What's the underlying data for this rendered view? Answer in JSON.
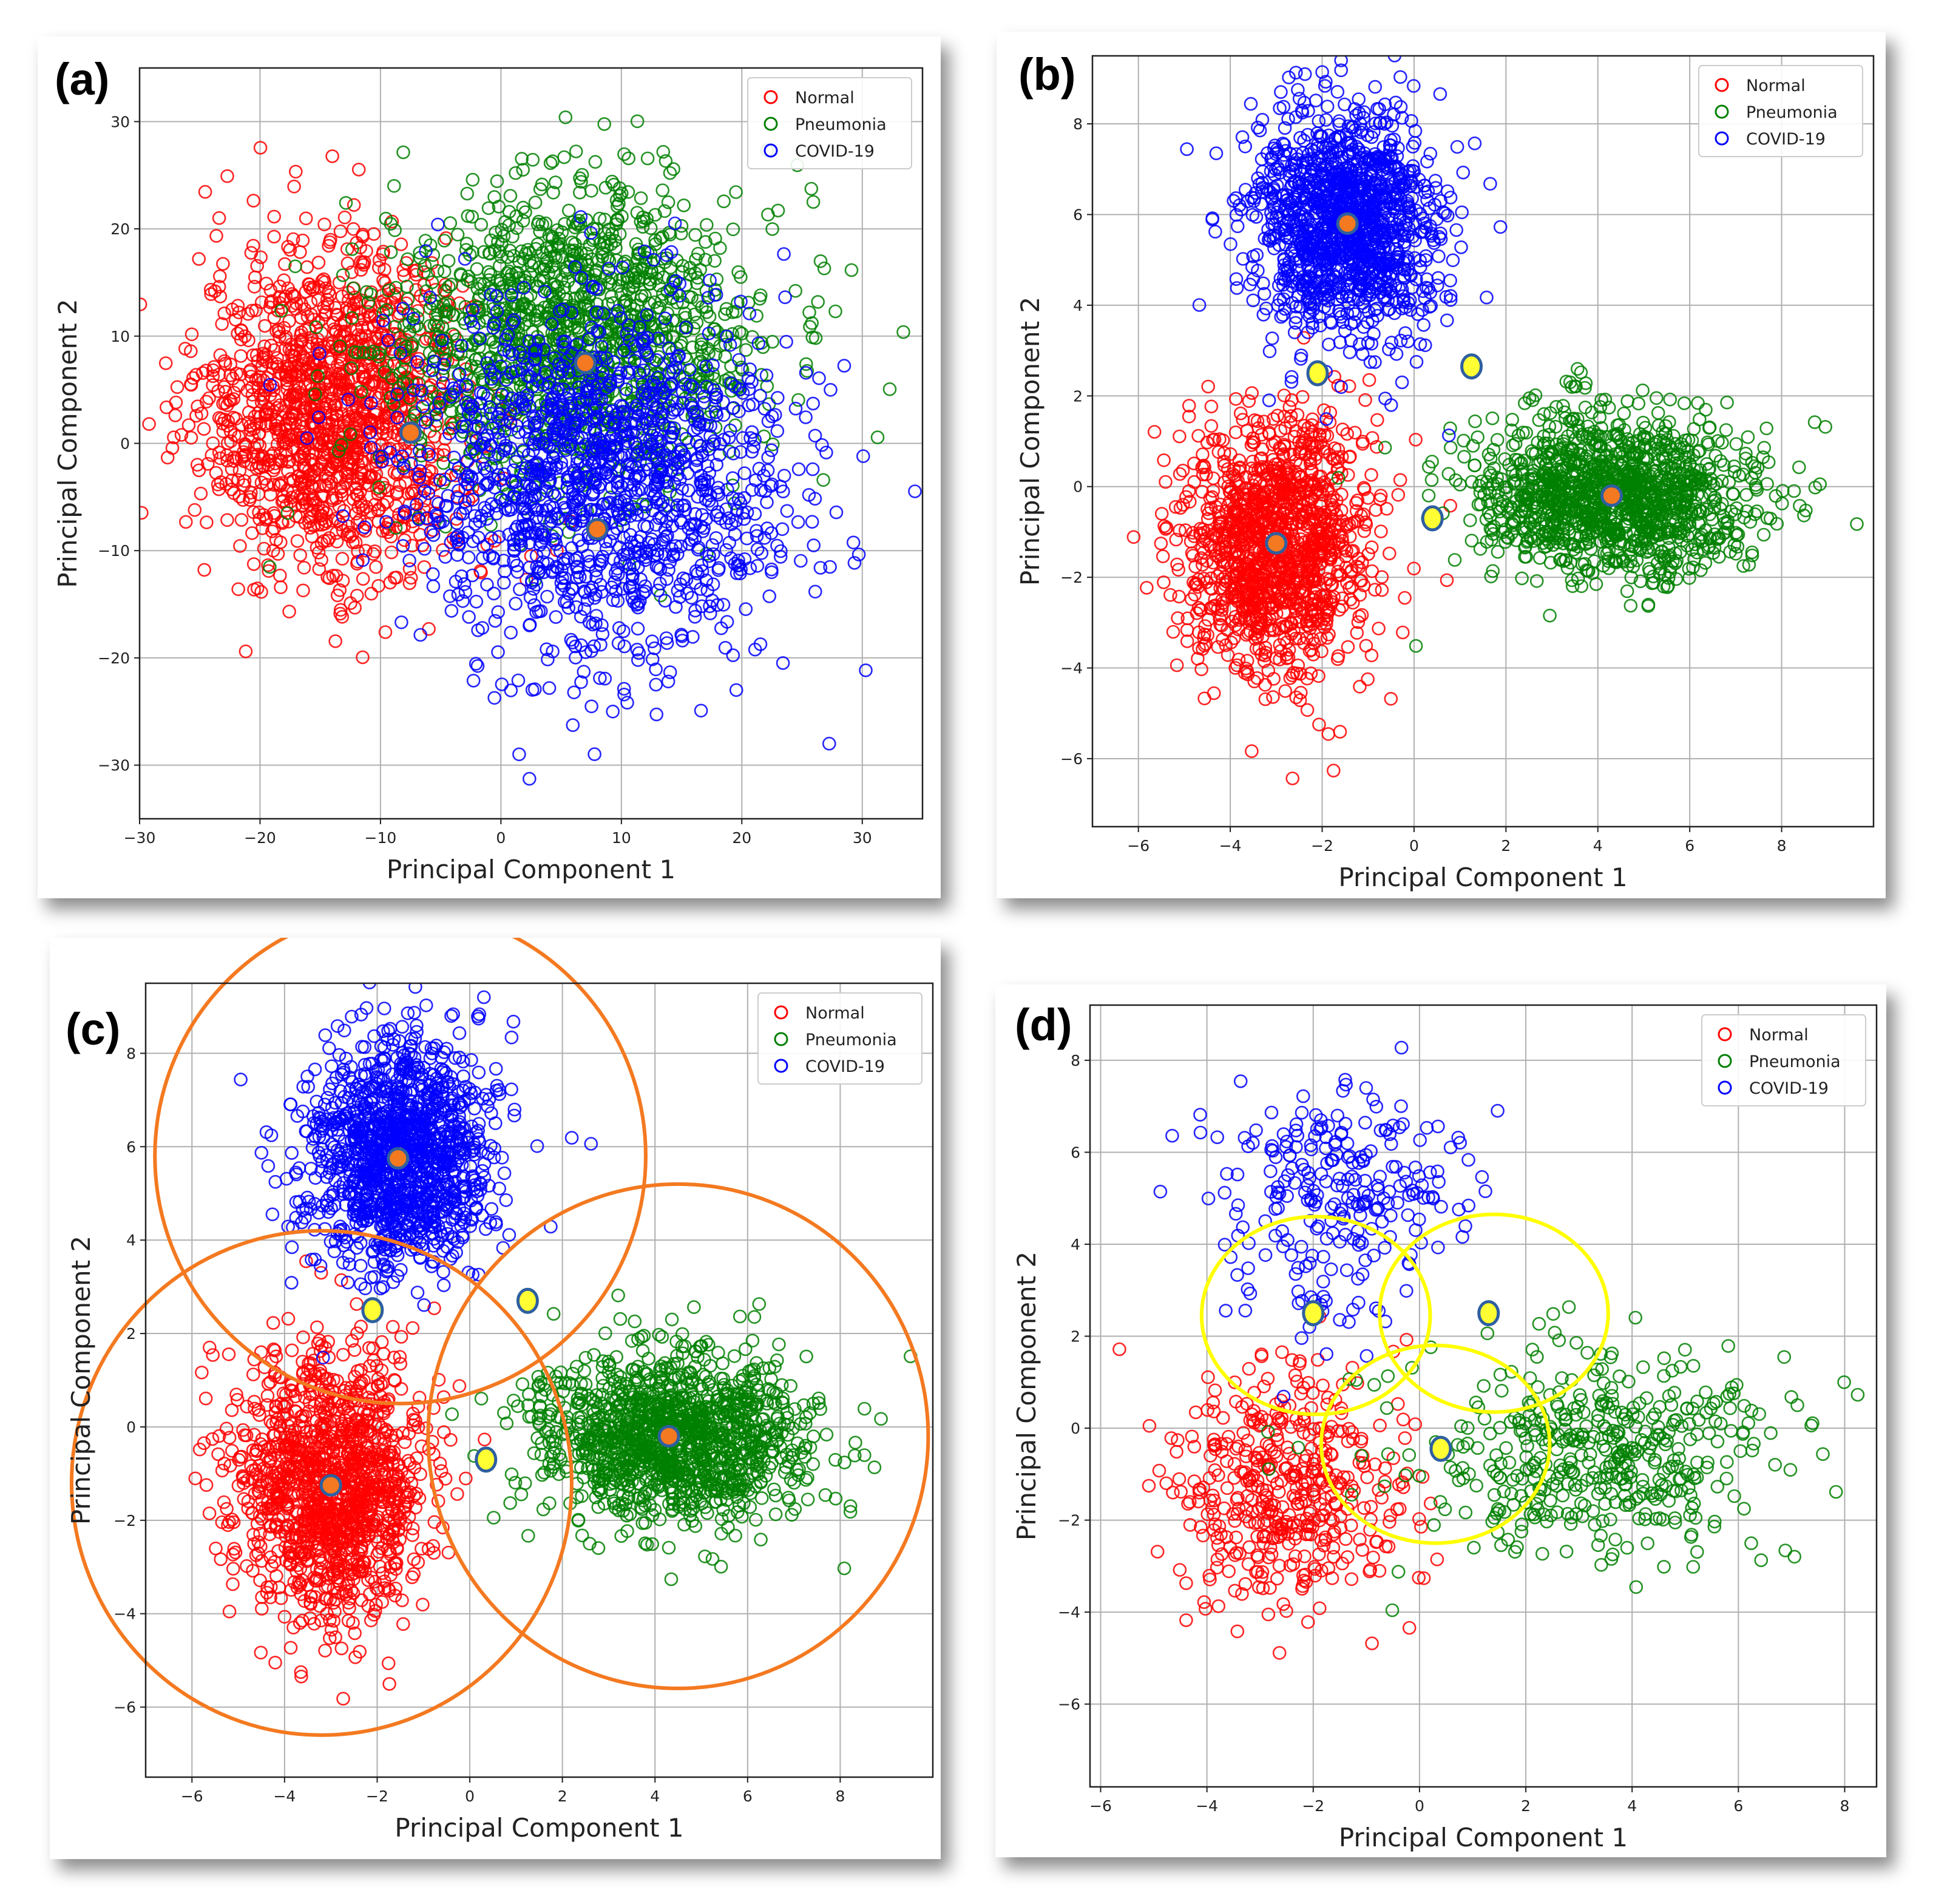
{
  "figure": {
    "legend_labels": [
      "Normal",
      "Pneumonia",
      "COVID-19"
    ],
    "colors": {
      "Normal": "#ff0000",
      "Pneumonia": "#008000",
      "COVID-19": "#0000ff",
      "centroid": "#f47920",
      "boundary_point": "#ffff33",
      "edge": "#2e5fa0"
    }
  },
  "chart_data": [
    {
      "panel": "(a)",
      "type": "scatter",
      "xlabel": "Principal Component 1",
      "ylabel": "Principal Component 2",
      "xlim": [
        -30,
        35
      ],
      "ylim": [
        -35,
        35
      ],
      "xticks": [
        -30,
        -20,
        -10,
        0,
        10,
        20,
        30
      ],
      "yticks": [
        -30,
        -20,
        -10,
        0,
        10,
        20,
        30
      ],
      "grid": true,
      "legend": "top-right",
      "series": [
        {
          "name": "Normal",
          "center": [
            -14,
            3
          ],
          "spread": [
            5.5,
            7.5
          ],
          "count": 1400
        },
        {
          "name": "Pneumonia",
          "center": [
            6,
            10
          ],
          "spread": [
            8,
            7
          ],
          "count": 1400
        },
        {
          "name": "COVID-19",
          "center": [
            8,
            -3
          ],
          "spread": [
            8,
            8
          ],
          "count": 1400
        }
      ],
      "centroids": [
        [
          -7.5,
          1
        ],
        [
          7,
          7.5
        ],
        [
          8,
          -8
        ]
      ],
      "boundary_points": [],
      "circles": []
    },
    {
      "panel": "(b)",
      "type": "scatter",
      "xlabel": "Principal Component 1",
      "ylabel": "Principal Component 2",
      "xlim": [
        -7,
        10
      ],
      "ylim": [
        -7.5,
        9.5
      ],
      "xticks": [
        -6,
        -4,
        -2,
        0,
        2,
        4,
        6,
        8
      ],
      "yticks": [
        -6,
        -4,
        -2,
        0,
        2,
        4,
        6,
        8
      ],
      "grid": true,
      "legend": "top-right",
      "series": [
        {
          "name": "Normal",
          "center": [
            -3,
            -1.3
          ],
          "spread": [
            1.0,
            1.4
          ],
          "count": 1300
        },
        {
          "name": "Pneumonia",
          "center": [
            4.3,
            -0.2
          ],
          "spread": [
            1.5,
            0.9
          ],
          "count": 1300
        },
        {
          "name": "COVID-19",
          "center": [
            -1.5,
            5.8
          ],
          "spread": [
            1.0,
            1.2
          ],
          "count": 1300
        }
      ],
      "centroids": [
        [
          -3,
          -1.25
        ],
        [
          4.3,
          -0.2
        ],
        [
          -1.45,
          5.8
        ]
      ],
      "boundary_points": [
        [
          -2.1,
          2.5
        ],
        [
          1.25,
          2.65
        ],
        [
          0.4,
          -0.7
        ]
      ],
      "circles": []
    },
    {
      "panel": "(c)",
      "type": "scatter",
      "xlabel": "Principal Component 1",
      "ylabel": "Principal Component 2",
      "xlim": [
        -7,
        10
      ],
      "ylim": [
        -7.5,
        9.5
      ],
      "xticks": [
        -6,
        -4,
        -2,
        0,
        2,
        4,
        6,
        8
      ],
      "yticks": [
        -6,
        -4,
        -2,
        0,
        2,
        4,
        6,
        8
      ],
      "grid": true,
      "legend": "top-right",
      "series": [
        {
          "name": "Normal",
          "center": [
            -3,
            -1.3
          ],
          "spread": [
            1.0,
            1.4
          ],
          "count": 1300
        },
        {
          "name": "Pneumonia",
          "center": [
            4.3,
            -0.2
          ],
          "spread": [
            1.5,
            0.9
          ],
          "count": 1300
        },
        {
          "name": "COVID-19",
          "center": [
            -1.5,
            5.8
          ],
          "spread": [
            1.0,
            1.2
          ],
          "count": 1300
        }
      ],
      "centroids": [
        [
          -3,
          -1.25
        ],
        [
          4.3,
          -0.2
        ],
        [
          -1.55,
          5.75
        ]
      ],
      "boundary_points": [
        [
          -2.1,
          2.5
        ],
        [
          1.25,
          2.7
        ],
        [
          0.35,
          -0.7
        ]
      ],
      "circles": [
        {
          "center": [
            -1.5,
            5.8
          ],
          "radius": 5.3,
          "color": "#f47920"
        },
        {
          "center": [
            -3.2,
            -1.2
          ],
          "radius": 5.4,
          "color": "#f47920"
        },
        {
          "center": [
            4.5,
            -0.2
          ],
          "radius": 5.4,
          "color": "#f47920"
        }
      ]
    },
    {
      "panel": "(d)",
      "type": "scatter",
      "xlabel": "Principal Component 1",
      "ylabel": "Principal Component 2",
      "xlim": [
        -6.2,
        8.6
      ],
      "ylim": [
        -7.8,
        9.2
      ],
      "xticks": [
        -6,
        -4,
        -2,
        0,
        2,
        4,
        6,
        8
      ],
      "yticks": [
        -6,
        -4,
        -2,
        0,
        2,
        4,
        6,
        8
      ],
      "grid": true,
      "legend": "top-right",
      "series": [
        {
          "name": "Normal",
          "center": [
            -2.5,
            -1.3
          ],
          "spread": [
            1.1,
            1.4
          ],
          "count": 450
        },
        {
          "name": "Pneumonia",
          "center": [
            3.2,
            -0.5
          ],
          "spread": [
            1.9,
            1.1
          ],
          "count": 450
        },
        {
          "name": "COVID-19",
          "center": [
            -1.5,
            5.0
          ],
          "spread": [
            1.2,
            1.4
          ],
          "count": 260
        }
      ],
      "centroids": [],
      "boundary_points": [
        [
          -2.0,
          2.5
        ],
        [
          1.3,
          2.5
        ],
        [
          0.4,
          -0.45
        ]
      ],
      "circles": [
        {
          "center": [
            -1.95,
            2.45
          ],
          "radius": 2.15,
          "color": "#ffff00"
        },
        {
          "center": [
            1.4,
            2.5
          ],
          "radius": 2.15,
          "color": "#ffff00"
        },
        {
          "center": [
            0.3,
            -0.35
          ],
          "radius": 2.15,
          "color": "#ffff00"
        }
      ]
    }
  ]
}
